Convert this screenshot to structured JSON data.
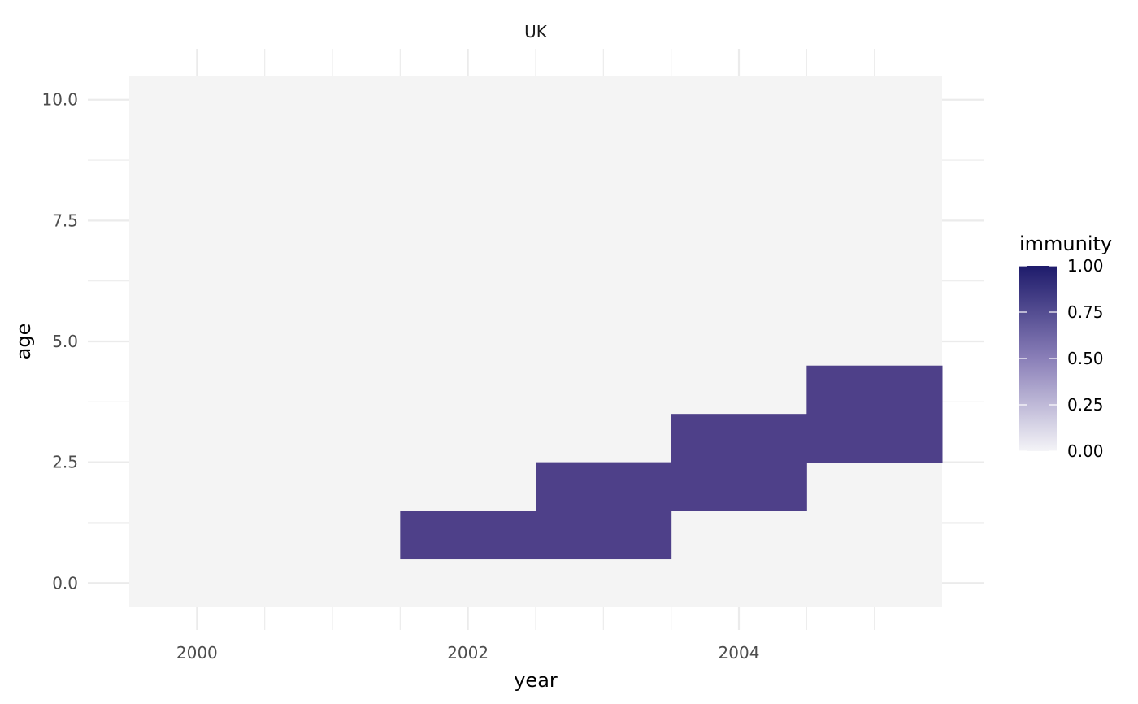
{
  "chart_data": {
    "type": "heatmap",
    "facet": "UK",
    "xlabel": "year",
    "ylabel": "age",
    "x_range": [
      1999.5,
      2005.5
    ],
    "y_range": [
      -0.5,
      10.5
    ],
    "x_ticks": [
      2000,
      2002,
      2004
    ],
    "x_tick_labels": [
      "2000",
      "2002",
      "2004"
    ],
    "y_ticks": [
      0,
      2.5,
      5,
      7.5,
      10
    ],
    "y_tick_labels": [
      "0.0",
      "2.5",
      "5.0",
      "7.5",
      "10.0"
    ],
    "years": [
      2000,
      2001,
      2002,
      2003,
      2004,
      2005
    ],
    "ages": [
      0,
      1,
      2,
      3,
      4,
      5,
      6,
      7,
      8,
      9,
      10
    ],
    "highlighted_cells": [
      {
        "year": 2002,
        "age": 1,
        "immunity": 0.8
      },
      {
        "year": 2003,
        "age": 1,
        "immunity": 0.8
      },
      {
        "year": 2003,
        "age": 2,
        "immunity": 0.8
      },
      {
        "year": 2004,
        "age": 2,
        "immunity": 0.8
      },
      {
        "year": 2004,
        "age": 3,
        "immunity": 0.8
      },
      {
        "year": 2005,
        "age": 3,
        "immunity": 0.8
      },
      {
        "year": 2005,
        "age": 4,
        "immunity": 0.8
      }
    ],
    "default_immunity": 0,
    "legend": {
      "title": "immunity",
      "ticks": [
        0,
        0.25,
        0.5,
        0.75,
        1
      ],
      "tick_labels": [
        "0.00",
        "0.25",
        "0.50",
        "0.75",
        "1.00"
      ],
      "low_color": "#f4f4f7",
      "high_color": "#1e1b6b"
    },
    "colors": {
      "background_cell": "#f4f4f4",
      "filled_cell": "#4e4089",
      "grid": "#ebebeb"
    }
  }
}
